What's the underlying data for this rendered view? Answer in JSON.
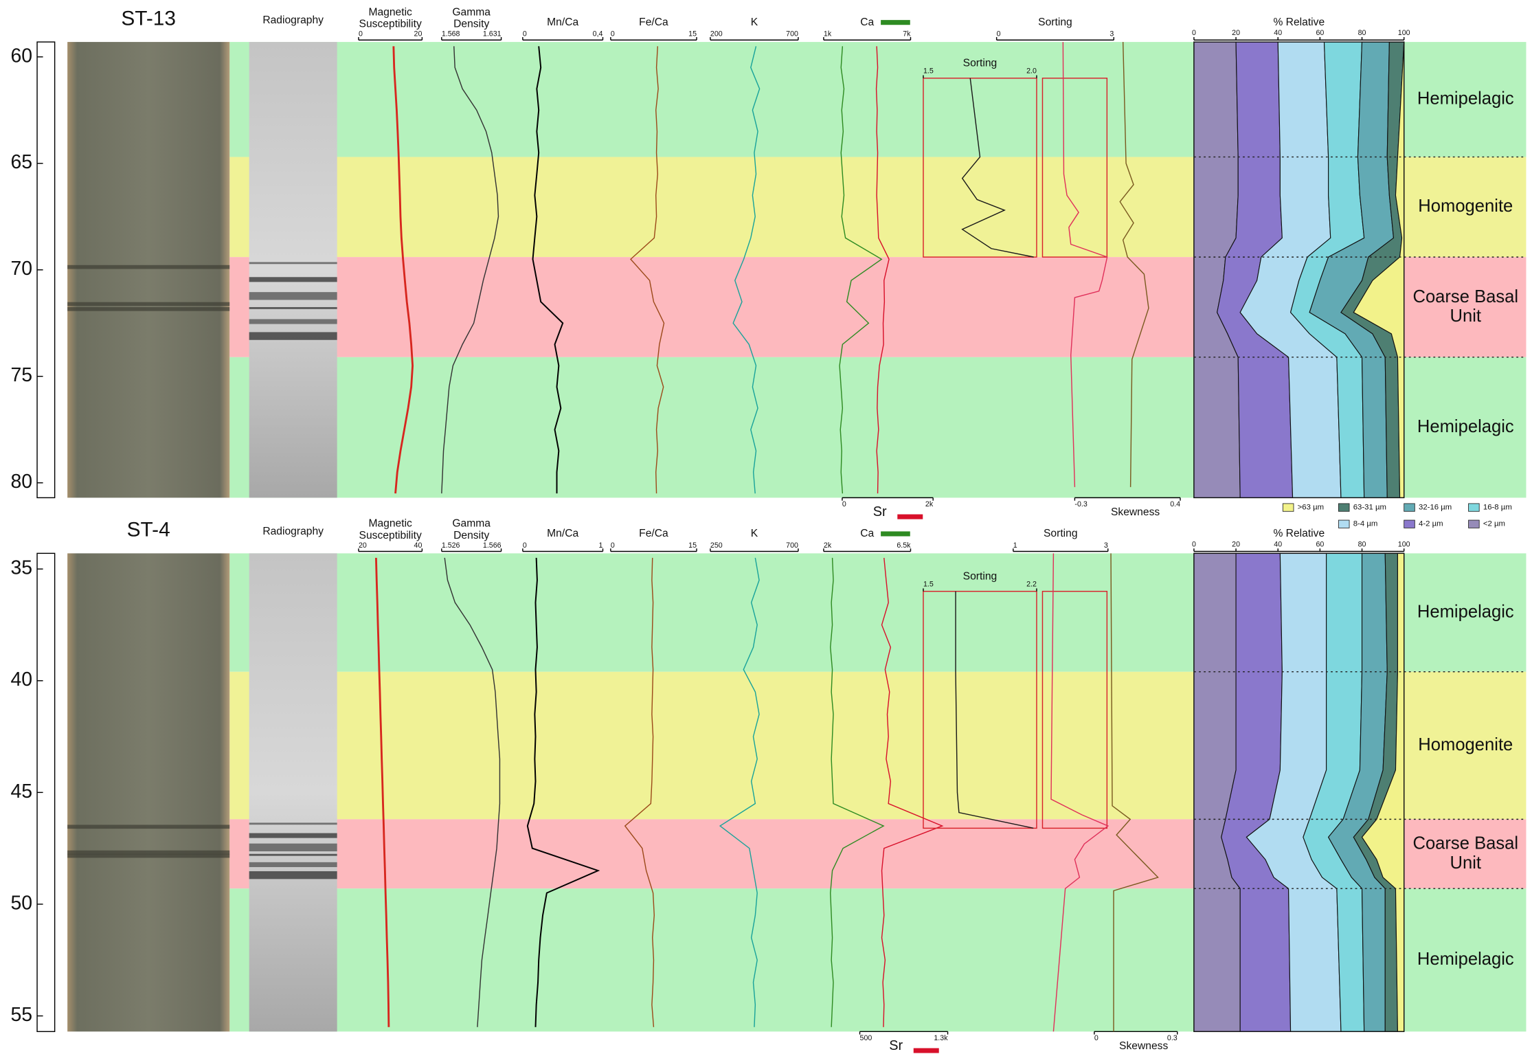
{
  "grain_size_legend": [
    {
      "name": ">63 µm",
      "color": "#f2f28a"
    },
    {
      "name": "63-31 µm",
      "color": "#4e7f72"
    },
    {
      "name": "32-16 µm",
      "color": "#62aab4"
    },
    {
      "name": "16-8 µm",
      "color": "#7ed7de"
    },
    {
      "name": "8-4 µm",
      "color": "#b1dcf1"
    },
    {
      "name": "4-2 µm",
      "color": "#8a78cc"
    },
    {
      "name": "<2 µm",
      "color": "#968bb8"
    }
  ],
  "chart_data": [
    {
      "type": "core-log",
      "title": "ST-13",
      "radiography_label": "Radiography",
      "ylim": [
        59.3,
        80.7
      ],
      "yticks": [
        60,
        65,
        70,
        75,
        80
      ],
      "zones": [
        {
          "name": "Hemipelagic",
          "range": [
            59.3,
            64.7
          ],
          "color": "#b5f2bd"
        },
        {
          "name": "Homogenite",
          "range": [
            64.7,
            69.4
          ],
          "color": "#f0f296"
        },
        {
          "name": "Coarse Basal Unit",
          "range": [
            69.4,
            74.1
          ],
          "color": "#fdb9be"
        },
        {
          "name": "Hemipelagic",
          "range": [
            74.1,
            80.7
          ],
          "color": "#b5f2bd"
        }
      ],
      "depth": [
        59.5,
        60.5,
        61.5,
        62.5,
        63.5,
        64.5,
        65.5,
        66.5,
        67.5,
        68.5,
        69.5,
        70.5,
        71.5,
        72.5,
        73.5,
        74.5,
        75.5,
        76.5,
        77.5,
        78.5,
        79.5,
        80.5
      ],
      "tracks": [
        {
          "label": "Magnetic Susceptibility",
          "axis": "top",
          "color": "#d7261e",
          "xlim": [
            0,
            20
          ],
          "xticks": [
            0,
            20
          ],
          "values": [
            11,
            11.2,
            11.6,
            12,
            12.3,
            12.6,
            12.8,
            13,
            13.2,
            13.5,
            14,
            14.6,
            15.2,
            16,
            16.6,
            17,
            16.6,
            15.6,
            14.4,
            13.2,
            12.2,
            11.6
          ]
        },
        {
          "label": "Gamma Density",
          "axis": "top",
          "color": "#333333",
          "xlim": [
            1.568,
            1.631
          ],
          "xticks": [
            1.568,
            1.631
          ],
          "values": [
            1.581,
            1.582,
            1.59,
            1.605,
            1.615,
            1.621,
            1.624,
            1.627,
            1.628,
            1.624,
            1.618,
            1.612,
            1.607,
            1.602,
            1.59,
            1.58,
            1.576,
            1.574,
            1.572,
            1.57,
            1.569,
            1.568
          ]
        },
        {
          "label": "Mn/Ca",
          "axis": "top",
          "color": "#000000",
          "xlim": [
            0,
            0.4
          ],
          "xticks": [
            0,
            {
              "value": 0.4,
              "label": "0,4"
            }
          ],
          "values": [
            0.08,
            0.09,
            0.07,
            0.08,
            0.07,
            0.08,
            0.07,
            0.06,
            0.07,
            0.06,
            0.05,
            0.07,
            0.09,
            0.2,
            0.16,
            0.18,
            0.17,
            0.19,
            0.16,
            0.18,
            0.17,
            0.17
          ]
        },
        {
          "label": "Fe/Ca",
          "axis": "top",
          "color": "#9c4a1a",
          "xlim": [
            0,
            15
          ],
          "xticks": [
            0,
            15
          ],
          "values": [
            8.2,
            8,
            8.3,
            7.9,
            8.1,
            8,
            8.2,
            7.9,
            8,
            7.6,
            3.5,
            6.8,
            7.5,
            9.3,
            8.5,
            8.1,
            9.2,
            8.3,
            8,
            8.2,
            7.9,
            8
          ]
        },
        {
          "label": "K",
          "axis": "top",
          "color": "#19a39a",
          "xlim": [
            200,
            700
          ],
          "xticks": [
            200,
            700
          ],
          "values": [
            460,
            430,
            480,
            440,
            470,
            450,
            460,
            440,
            455,
            430,
            390,
            340,
            380,
            330,
            420,
            460,
            440,
            470,
            430,
            460,
            445,
            455
          ]
        },
        {
          "label": "Ca",
          "axis": "top",
          "color": "#2e8b22",
          "xlim": [
            1000,
            7000
          ],
          "xticks": [
            {
              "value": 1000,
              "label": "1k"
            },
            {
              "value": 7000,
              "label": "7k"
            }
          ],
          "values": [
            2300,
            2200,
            2400,
            2250,
            2350,
            2200,
            2300,
            2400,
            2250,
            2500,
            5000,
            2900,
            2600,
            4100,
            2300,
            2100,
            2200,
            2300,
            2150,
            2250,
            2200,
            2300
          ]
        },
        {
          "label": "Sr",
          "axis": "bottom",
          "color": "#d8102a",
          "xlim": [
            0,
            2000
          ],
          "xticks": [
            0,
            {
              "value": 2000,
              "label": "2k"
            }
          ],
          "values": [
            760,
            780,
            750,
            770,
            760,
            780,
            770,
            760,
            780,
            800,
            1030,
            920,
            930,
            900,
            910,
            820,
            780,
            770,
            800,
            760,
            790,
            780
          ]
        },
        {
          "label": "Sorting",
          "axis": "inset",
          "color": "#1a1a1a",
          "xlim": [
            1.5,
            2
          ],
          "xticks": [
            1.5,
            {
              "value": 2,
              "label": "2.0"
            }
          ],
          "depth": [
            61.0,
            64.7,
            65.7,
            66.7,
            67.2,
            68.1,
            69.0,
            69.4
          ],
          "values": [
            1.707,
            1.75,
            1.672,
            1.737,
            1.858,
            1.672,
            1.8,
            1.987
          ]
        },
        {
          "label": "Sorting",
          "axis": "top",
          "color": "#e0305a",
          "xlim": [
            0,
            3
          ],
          "xticks": [
            0,
            3
          ],
          "depth": [
            59.3,
            65.5,
            66.5,
            67.3,
            68.0,
            68.8,
            69.4,
            70.5,
            71.0,
            71.3,
            74.0,
            80.2
          ],
          "values": [
            1.7,
            1.72,
            1.8,
            2.1,
            1.85,
            1.9,
            2.83,
            2.7,
            2.62,
            2.0,
            1.9,
            2.0
          ]
        },
        {
          "label": "Skewness",
          "axis": "bottom",
          "color": "#7a5a20",
          "xlim": [
            -0.3,
            0.4
          ],
          "xticks": [
            -0.3,
            0.4
          ],
          "depth": [
            59.3,
            65.0,
            66.0,
            66.8,
            67.8,
            68.6,
            69.4,
            70.2,
            71.8,
            74.2,
            80.2
          ],
          "values": [
            0.02,
            0.04,
            0.09,
            0.0,
            0.09,
            0.02,
            0.05,
            0.16,
            0.19,
            0.08,
            0.07
          ]
        }
      ],
      "grain_size": {
        "label": "% Relative",
        "xlim": [
          0,
          100
        ],
        "xticks": [
          0,
          20,
          40,
          60,
          80,
          100
        ],
        "depth": [
          59.3,
          64.7,
          66.5,
          68.5,
          69.4,
          70.5,
          72.0,
          73.0,
          74.1,
          80.7
        ],
        "values": [
          [
            0,
            3,
            4,
            1,
            2,
            15,
            24,
            6,
            3,
            2
          ],
          [
            7,
            5,
            3,
            4,
            15,
            5,
            6,
            9,
            6,
            6
          ],
          [
            13,
            14,
            14,
            14,
            19,
            20,
            15,
            13,
            11,
            11
          ],
          [
            18,
            14,
            15,
            16,
            10,
            10,
            9,
            17,
            12,
            11
          ],
          [
            22,
            23,
            23,
            23,
            22,
            20,
            24,
            25,
            23,
            23
          ],
          [
            20,
            20,
            20,
            22,
            17,
            16,
            11,
            14,
            24,
            25
          ],
          [
            20,
            21,
            21,
            20,
            15,
            14,
            11,
            16,
            21,
            22
          ]
        ]
      }
    },
    {
      "type": "core-log",
      "title": "ST-4",
      "radiography_label": "Radiography",
      "ylim": [
        34.3,
        55.7
      ],
      "yticks": [
        35,
        40,
        45,
        50,
        55
      ],
      "zones": [
        {
          "name": "Hemipelagic",
          "range": [
            34.3,
            39.6
          ],
          "color": "#b5f2bd"
        },
        {
          "name": "Homogenite",
          "range": [
            39.6,
            46.2
          ],
          "color": "#f0f296"
        },
        {
          "name": "Coarse Basal Unit",
          "range": [
            46.2,
            49.3
          ],
          "color": "#fdb9be"
        },
        {
          "name": "Hemipelagic",
          "range": [
            49.3,
            55.7
          ],
          "color": "#b5f2bd"
        }
      ],
      "depth": [
        34.5,
        35.5,
        36.5,
        37.5,
        38.5,
        39.5,
        40.5,
        41.5,
        42.5,
        43.5,
        44.5,
        45.5,
        46.5,
        47.5,
        48.5,
        49.5,
        50.5,
        51.5,
        52.5,
        53.5,
        54.5,
        55.5
      ],
      "tracks": [
        {
          "label": "Magnetic Susceptibility",
          "axis": "top",
          "color": "#d7261e",
          "xlim": [
            20,
            40
          ],
          "xticks": [
            20,
            40
          ],
          "values": [
            25.5,
            25.7,
            25.9,
            26.1,
            26.3,
            26.5,
            26.7,
            26.9,
            27.1,
            27.3,
            27.5,
            27.7,
            27.9,
            28.1,
            28.3,
            28.5,
            28.7,
            28.9,
            29.1,
            29.3,
            29.4,
            29.5
          ]
        },
        {
          "label": "Gamma Density",
          "axis": "top",
          "color": "#333333",
          "xlim": [
            1.526,
            1.566
          ],
          "xticks": [
            1.526,
            1.566
          ],
          "values": [
            1.528,
            1.53,
            1.535,
            1.545,
            1.553,
            1.56,
            1.562,
            1.563,
            1.564,
            1.565,
            1.565,
            1.565,
            1.564,
            1.563,
            1.561,
            1.559,
            1.557,
            1.555,
            1.553,
            1.552,
            1.551,
            1.55
          ]
        },
        {
          "label": "Mn/Ca",
          "axis": "top",
          "color": "#000000",
          "xlim": [
            0,
            1
          ],
          "xticks": [
            0,
            1
          ],
          "values": [
            0.17,
            0.18,
            0.16,
            0.17,
            0.18,
            0.16,
            0.17,
            0.15,
            0.16,
            0.15,
            0.16,
            0.14,
            0.06,
            0.12,
            0.94,
            0.3,
            0.25,
            0.22,
            0.2,
            0.19,
            0.17,
            0.16
          ]
        },
        {
          "label": "Fe/Ca",
          "axis": "top",
          "color": "#9c4a1a",
          "xlim": [
            0,
            15
          ],
          "xticks": [
            0,
            15
          ],
          "values": [
            7.3,
            7.2,
            7.4,
            7.3,
            7.2,
            7.4,
            7.3,
            7.2,
            7.4,
            7.3,
            7.2,
            7.0,
            2.5,
            5.5,
            6.2,
            7.4,
            7.6,
            7.3,
            7.5,
            7.4,
            7.2,
            7.5
          ]
        },
        {
          "label": "K",
          "axis": "top",
          "color": "#19a39a",
          "xlim": [
            250,
            700
          ],
          "xticks": [
            250,
            700
          ],
          "values": [
            480,
            500,
            460,
            490,
            470,
            420,
            480,
            500,
            470,
            490,
            460,
            480,
            300,
            450,
            470,
            490,
            480,
            460,
            490,
            470,
            480,
            475
          ]
        },
        {
          "label": "Ca",
          "axis": "top",
          "color": "#2e8b22",
          "xlim": [
            2000,
            6500
          ],
          "xticks": [
            {
              "value": 2000,
              "label": "2k"
            },
            {
              "value": 6500,
              "label": "6.5k"
            }
          ],
          "values": [
            2450,
            2500,
            2400,
            2450,
            2350,
            2450,
            2400,
            2500,
            2450,
            2400,
            2450,
            2500,
            5100,
            3000,
            2450,
            2350,
            2400,
            2450,
            2400,
            2500,
            2450,
            2400
          ]
        },
        {
          "label": "Sr",
          "axis": "bottom",
          "color": "#d8102a",
          "xlim": [
            500,
            1300
          ],
          "xticks": [
            500,
            {
              "value": 1300,
              "label": "1.3k"
            }
          ],
          "values": [
            720,
            740,
            760,
            700,
            780,
            730,
            770,
            750,
            760,
            740,
            780,
            760,
            1250,
            720,
            700,
            710,
            720,
            700,
            730,
            710,
            720,
            715
          ]
        },
        {
          "label": "Sorting",
          "axis": "inset",
          "color": "#1a1a1a",
          "xlim": [
            1.5,
            2.2
          ],
          "xticks": [
            1.5,
            2.2
          ],
          "depth": [
            36.0,
            39.6,
            45.0,
            45.9,
            46.6
          ],
          "values": [
            1.7,
            1.7,
            1.71,
            1.72,
            2.18
          ]
        },
        {
          "label": "Sorting",
          "axis": "top",
          "color": "#e0305a",
          "xlim": [
            1,
            3
          ],
          "xticks": [
            1,
            3
          ],
          "depth": [
            34.3,
            45.3,
            46.0,
            46.5,
            47.3,
            48.0,
            48.8,
            49.3,
            55.7
          ],
          "values": [
            1.85,
            1.8,
            2.45,
            3.0,
            2.5,
            2.3,
            2.4,
            2.1,
            1.85
          ]
        },
        {
          "label": "Skewness",
          "axis": "bottom",
          "color": "#7a5a20",
          "xlim": [
            0,
            0.3
          ],
          "xticks": [
            0,
            0.3
          ],
          "depth": [
            34.3,
            45.6,
            46.2,
            46.9,
            48.8,
            49.4,
            55.7
          ],
          "values": [
            0.06,
            0.065,
            0.13,
            0.08,
            0.23,
            0.07,
            0.07
          ]
        }
      ],
      "grain_size": {
        "label": "% Relative",
        "xlim": [
          0,
          100
        ],
        "xticks": [
          0,
          20,
          40,
          60,
          80,
          100
        ],
        "depth": [
          34.3,
          39.6,
          44.0,
          46.2,
          47.0,
          48.0,
          48.8,
          49.3,
          55.7
        ],
        "values": [
          [
            3,
            3,
            4,
            13,
            20,
            13,
            10,
            4,
            3
          ],
          [
            6,
            5,
            6,
            4,
            4,
            5,
            4,
            5,
            6
          ],
          [
            11,
            12,
            11,
            12,
            12,
            12,
            11,
            11,
            10
          ],
          [
            17,
            17,
            16,
            16,
            12,
            14,
            14,
            12,
            11
          ],
          [
            22,
            21,
            22,
            19,
            27,
            22,
            23,
            23,
            24
          ],
          [
            21,
            22,
            21,
            21,
            12,
            18,
            20,
            23,
            24
          ],
          [
            20,
            20,
            20,
            15,
            13,
            16,
            18,
            22,
            22
          ]
        ]
      }
    }
  ]
}
